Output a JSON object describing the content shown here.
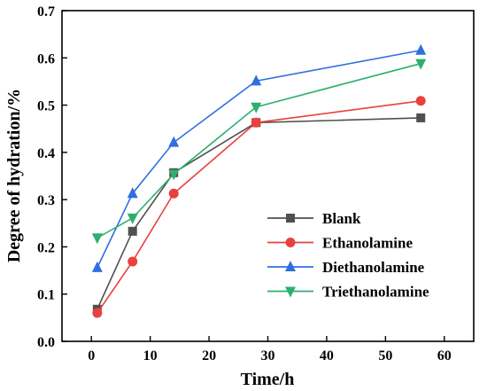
{
  "chart_data": {
    "type": "line",
    "title": "",
    "xlabel": "Time/h",
    "ylabel": "Degree of hydration/%",
    "xlim": [
      -5,
      65
    ],
    "ylim": [
      0.0,
      0.7
    ],
    "xticks": [
      0,
      10,
      20,
      30,
      40,
      50,
      60
    ],
    "yticks": [
      0.0,
      0.1,
      0.2,
      0.3,
      0.4,
      0.5,
      0.6,
      0.7
    ],
    "grid": false,
    "legend_position": "lower-right",
    "x": [
      1,
      7,
      14,
      28,
      56
    ],
    "series": [
      {
        "name": "Blank",
        "values": [
          0.068,
          0.233,
          0.357,
          0.463,
          0.473
        ],
        "color": "#505050",
        "marker": "square"
      },
      {
        "name": "Ethanolamine",
        "values": [
          0.06,
          0.169,
          0.313,
          0.463,
          0.509
        ],
        "color": "#e8413e",
        "marker": "circle"
      },
      {
        "name": "Diethanolamine",
        "values": [
          0.156,
          0.313,
          0.421,
          0.551,
          0.616
        ],
        "color": "#2f6fe0",
        "marker": "triangle-up"
      },
      {
        "name": "Triethanolamine",
        "values": [
          0.219,
          0.261,
          0.354,
          0.496,
          0.588
        ],
        "color": "#2eaf6e",
        "marker": "triangle-down"
      }
    ]
  }
}
